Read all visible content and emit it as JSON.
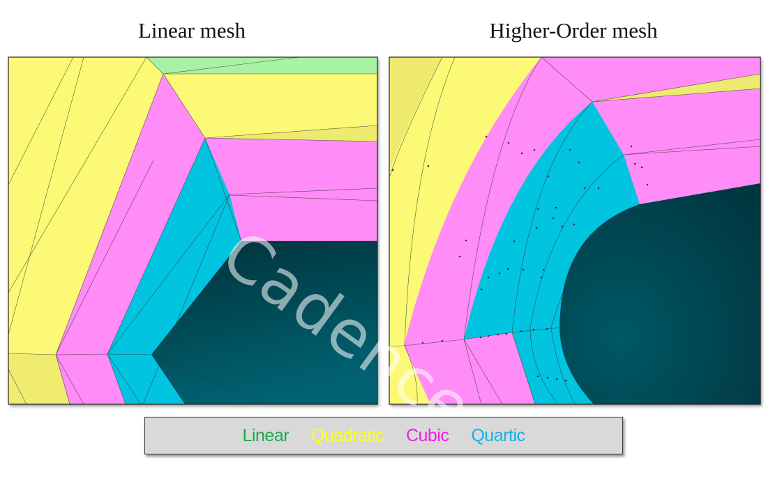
{
  "titles": {
    "left": "Linear mesh",
    "right": "Higher-Order mesh"
  },
  "legend": {
    "items": [
      {
        "label": "Linear",
        "color": "#1aab4b"
      },
      {
        "label": "Quadratic",
        "color": "#ffff1a"
      },
      {
        "label": "Cubic",
        "color": "#f21de6"
      },
      {
        "label": "Quartic",
        "color": "#18b0e6"
      }
    ]
  },
  "region_colors": {
    "linear": "#a7f2a3",
    "quadratic": "#fbf974",
    "cubic": "#ff8cf7",
    "quartic": "#00c4e0",
    "geometry": "#00505c"
  },
  "watermark": "Cadence"
}
